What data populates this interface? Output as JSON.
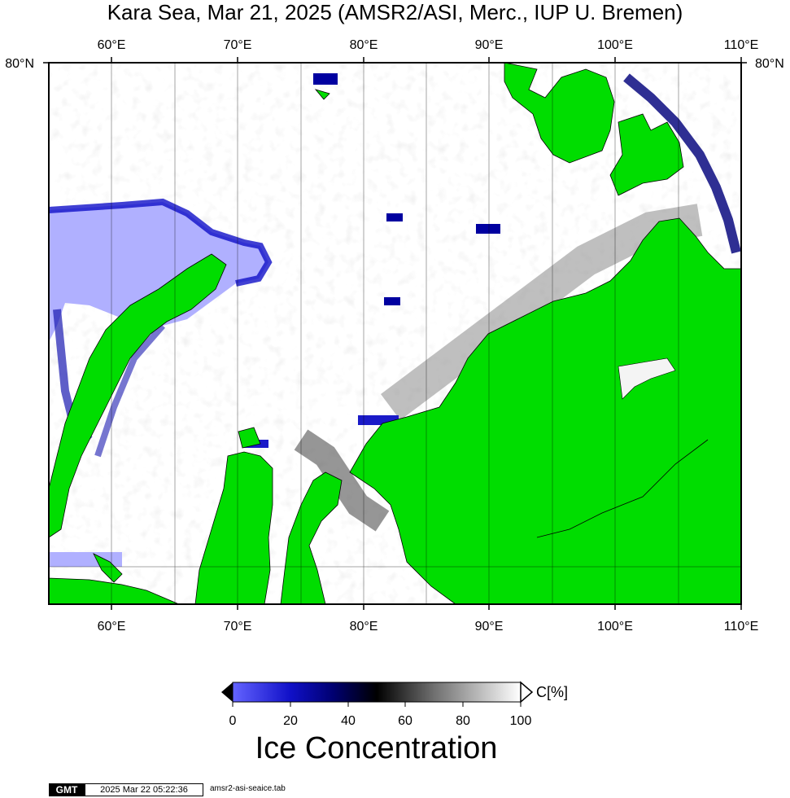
{
  "title": "Kara Sea, Mar 21, 2025 (AMSR2/ASI, Merc., IUP U. Bremen)",
  "map": {
    "lon_range": [
      55,
      110
    ],
    "lat_top_label": "80°N",
    "lon_ticks": [
      {
        "lon": 60,
        "label": "60°E"
      },
      {
        "lon": 70,
        "label": "70°E"
      },
      {
        "lon": 80,
        "label": "80°E"
      },
      {
        "lon": 90,
        "label": "90°E"
      },
      {
        "lon": 100,
        "label": "100°E"
      },
      {
        "lon": 110,
        "label": "110°E"
      }
    ],
    "colors": {
      "land": "#00dd00",
      "open_water": "#b0b0ff",
      "ice": "#ffffff",
      "coast": "#000000"
    }
  },
  "colorbar": {
    "unit": "C[%]",
    "ticks": [
      "0",
      "20",
      "40",
      "60",
      "80",
      "100"
    ],
    "title": "Ice Concentration",
    "stops": [
      "#6464ff",
      "#0000a0",
      "#000000",
      "#808080",
      "#ffffff"
    ]
  },
  "footer": {
    "logo": "GMT",
    "timestamp": "2025 Mar 22 05:22:36",
    "file": "amsr2-asi-seaice.tab"
  }
}
